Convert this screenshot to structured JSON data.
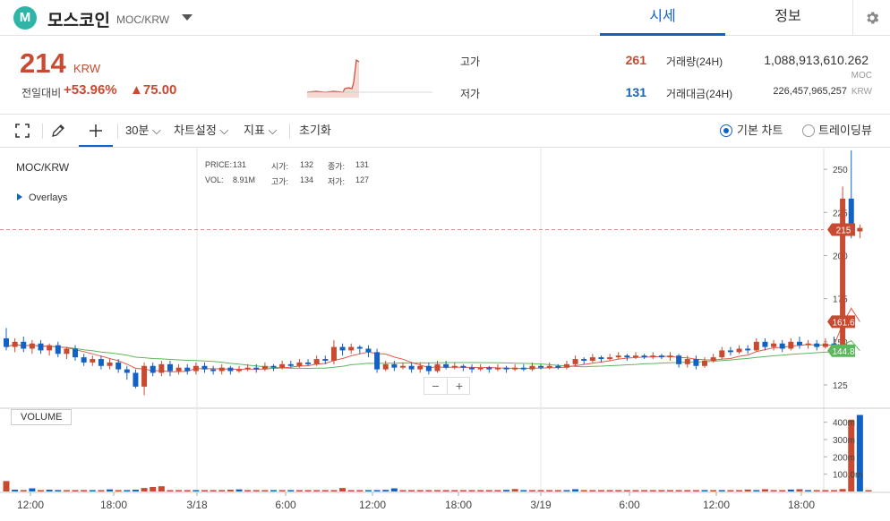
{
  "header": {
    "logo_letter": "M",
    "coin_name": "모스코인",
    "pair": "MOC/KRW",
    "tabs": [
      {
        "label": "시세",
        "active": true
      },
      {
        "label": "정보",
        "active": false
      }
    ]
  },
  "price": {
    "value": "214",
    "unit": "KRW",
    "change_label": "전일대비",
    "change_pct": "+53.96%",
    "change_amt": "▲75.00"
  },
  "stats": {
    "high_label": "고가",
    "high": "261",
    "low_label": "저가",
    "low": "131",
    "volume_label": "거래량(24H)",
    "volume": "1,088,913,610.262",
    "volume_unit": "MOC",
    "value_label": "거래대금(24H)",
    "value": "226,457,965,257",
    "value_unit": "KRW"
  },
  "toolbar": {
    "interval": "30분",
    "chart_settings": "차트설정",
    "indicators": "지표",
    "reset": "초기화",
    "basic_chart": "기본 차트",
    "tradingview": "트레이딩뷰",
    "basic_selected": true
  },
  "chart": {
    "pair": "MOC/KRW",
    "overlays": "Overlays",
    "ohlc": {
      "price_label": "PRICE:",
      "price": "131",
      "open_label": "시가:",
      "open": "132",
      "close_label": "종가:",
      "close": "131",
      "vol_label": "VOL:",
      "vol": "8.91M",
      "high_label": "고가:",
      "high": "134",
      "low_label": "저가:",
      "low": "127"
    },
    "volume_label": "VOLUME",
    "zoom_out": "−",
    "zoom_in": "+"
  },
  "colors": {
    "up": "#c84a31",
    "down": "#1261c4",
    "accent": "#1261c4",
    "ma_red": "#e05a4a",
    "ma_green": "#5cb85c"
  },
  "chart_data": {
    "type": "candlestick",
    "y_ticks": [
      250,
      225,
      200,
      175,
      150,
      125
    ],
    "ylim": [
      112,
      262
    ],
    "x_ticks": [
      "12:00",
      "18:00",
      "3/18",
      "6:00",
      "12:00",
      "18:00",
      "3/19",
      "6:00",
      "12:00",
      "18:00"
    ],
    "price_tags": [
      {
        "value": 215,
        "label": "215",
        "color": "#c84a31"
      },
      {
        "value": 161.6,
        "label": "161.6",
        "color": "#c84a31"
      },
      {
        "value": 144.8,
        "label": "144.8",
        "color": "#5cb85c"
      }
    ],
    "volume_ticks": [
      "400m",
      "300m",
      "200m",
      "100.0m"
    ],
    "volume_max": 450,
    "candles": [
      [
        152,
        147,
        158,
        145
      ],
      [
        147,
        150,
        152,
        144
      ],
      [
        150,
        146,
        153,
        144
      ],
      [
        146,
        149,
        151,
        143
      ],
      [
        149,
        145,
        151,
        143
      ],
      [
        145,
        148,
        149,
        142
      ],
      [
        148,
        143,
        150,
        141
      ],
      [
        143,
        146,
        147,
        140
      ],
      [
        146,
        141,
        148,
        139
      ],
      [
        141,
        138,
        143,
        136
      ],
      [
        138,
        140,
        142,
        136
      ],
      [
        140,
        136,
        142,
        134
      ],
      [
        136,
        138,
        140,
        134
      ],
      [
        138,
        134,
        140,
        132
      ],
      [
        134,
        132,
        136,
        128
      ],
      [
        132,
        124,
        134,
        123
      ],
      [
        124,
        136,
        138,
        119
      ],
      [
        136,
        132,
        138,
        130
      ],
      [
        132,
        137,
        139,
        130
      ],
      [
        137,
        133,
        139,
        130
      ],
      [
        133,
        135,
        137,
        131
      ],
      [
        135,
        133,
        137,
        131
      ],
      [
        133,
        136,
        138,
        131
      ],
      [
        136,
        134,
        138,
        132
      ],
      [
        134,
        133,
        136,
        131
      ],
      [
        133,
        135,
        137,
        131
      ],
      [
        135,
        133,
        136,
        131
      ],
      [
        133,
        134,
        136,
        132
      ],
      [
        134,
        135,
        137,
        133
      ],
      [
        135,
        134,
        137,
        132
      ],
      [
        134,
        136,
        138,
        133
      ],
      [
        136,
        135,
        137,
        133
      ],
      [
        135,
        137,
        139,
        134
      ],
      [
        137,
        136,
        139,
        135
      ],
      [
        136,
        138,
        140,
        135
      ],
      [
        138,
        137,
        140,
        136
      ],
      [
        137,
        140,
        142,
        136
      ],
      [
        140,
        139,
        142,
        137
      ],
      [
        139,
        147,
        151,
        137
      ],
      [
        147,
        145,
        149,
        142
      ],
      [
        145,
        147,
        149,
        143
      ],
      [
        147,
        146,
        148,
        143
      ],
      [
        146,
        144,
        148,
        141
      ],
      [
        144,
        134,
        146,
        132
      ],
      [
        134,
        137,
        139,
        133
      ],
      [
        137,
        135,
        139,
        133
      ],
      [
        135,
        136,
        138,
        134
      ],
      [
        136,
        134,
        138,
        132
      ],
      [
        134,
        136,
        138,
        132
      ],
      [
        136,
        133,
        138,
        131
      ],
      [
        133,
        137,
        139,
        132
      ],
      [
        137,
        135,
        139,
        134
      ],
      [
        135,
        136,
        138,
        134
      ],
      [
        136,
        135,
        137,
        133
      ],
      [
        135,
        134,
        137,
        132
      ],
      [
        134,
        135,
        137,
        133
      ],
      [
        135,
        134,
        136,
        132
      ],
      [
        134,
        135,
        137,
        133
      ],
      [
        135,
        134,
        136,
        132
      ],
      [
        134,
        135,
        137,
        133
      ],
      [
        135,
        134,
        137,
        133
      ],
      [
        134,
        136,
        138,
        133
      ],
      [
        136,
        135,
        137,
        134
      ],
      [
        135,
        136,
        138,
        134
      ],
      [
        136,
        135,
        137,
        134
      ],
      [
        135,
        137,
        139,
        134
      ],
      [
        137,
        140,
        142,
        136
      ],
      [
        140,
        139,
        141,
        137
      ],
      [
        139,
        141,
        143,
        138
      ],
      [
        141,
        140,
        142,
        138
      ],
      [
        140,
        141,
        143,
        139
      ],
      [
        141,
        142,
        144,
        140
      ],
      [
        142,
        141,
        143,
        139
      ],
      [
        141,
        142,
        144,
        140
      ],
      [
        142,
        141,
        143,
        140
      ],
      [
        141,
        142,
        144,
        140
      ],
      [
        142,
        141,
        143,
        140
      ],
      [
        141,
        142,
        144,
        139
      ],
      [
        142,
        137,
        143,
        135
      ],
      [
        137,
        140,
        142,
        135
      ],
      [
        140,
        136,
        142,
        134
      ],
      [
        136,
        139,
        141,
        135
      ],
      [
        139,
        141,
        143,
        138
      ],
      [
        141,
        145,
        147,
        140
      ],
      [
        145,
        144,
        147,
        142
      ],
      [
        144,
        146,
        148,
        143
      ],
      [
        146,
        145,
        148,
        143
      ],
      [
        145,
        150,
        152,
        144
      ],
      [
        150,
        147,
        152,
        145
      ],
      [
        147,
        149,
        151,
        145
      ],
      [
        149,
        146,
        151,
        144
      ],
      [
        146,
        150,
        152,
        145
      ],
      [
        150,
        148,
        153,
        146
      ],
      [
        148,
        149,
        151,
        146
      ],
      [
        149,
        147,
        151,
        145
      ],
      [
        147,
        149,
        152,
        146
      ],
      [
        149,
        146,
        153,
        145
      ],
      [
        147,
        233,
        240,
        146
      ],
      [
        233,
        214,
        261,
        210
      ],
      [
        214,
        216,
        218,
        210
      ]
    ],
    "volumes": [
      [
        60,
        0
      ],
      [
        10,
        1
      ],
      [
        8,
        0
      ],
      [
        18,
        1
      ],
      [
        6,
        0
      ],
      [
        10,
        1
      ],
      [
        8,
        1
      ],
      [
        6,
        0
      ],
      [
        4,
        0
      ],
      [
        8,
        0
      ],
      [
        3,
        1
      ],
      [
        5,
        0
      ],
      [
        12,
        1
      ],
      [
        6,
        0
      ],
      [
        3,
        1
      ],
      [
        10,
        1
      ],
      [
        20,
        0
      ],
      [
        26,
        0
      ],
      [
        30,
        0
      ],
      [
        4,
        0
      ],
      [
        4,
        0
      ],
      [
        3,
        0
      ],
      [
        5,
        1
      ],
      [
        4,
        0
      ],
      [
        7,
        0
      ],
      [
        8,
        0
      ],
      [
        10,
        0
      ],
      [
        12,
        1
      ],
      [
        5,
        0
      ],
      [
        4,
        0
      ],
      [
        4,
        0
      ],
      [
        2,
        1
      ],
      [
        6,
        0
      ],
      [
        3,
        1
      ],
      [
        3,
        0
      ],
      [
        2,
        0
      ],
      [
        2,
        0
      ],
      [
        2,
        0
      ],
      [
        4,
        0
      ],
      [
        20,
        0
      ],
      [
        3,
        0
      ],
      [
        2,
        0
      ],
      [
        5,
        1
      ],
      [
        2,
        1
      ],
      [
        9,
        1
      ],
      [
        18,
        1
      ],
      [
        2,
        0
      ],
      [
        2,
        0
      ],
      [
        1,
        0
      ],
      [
        1,
        0
      ],
      [
        1,
        0
      ],
      [
        1,
        0
      ],
      [
        2,
        0
      ],
      [
        1,
        0
      ],
      [
        1,
        0
      ],
      [
        2,
        0
      ],
      [
        1,
        0
      ],
      [
        1,
        0
      ],
      [
        9,
        1
      ],
      [
        14,
        0
      ],
      [
        6,
        1
      ],
      [
        1,
        0
      ],
      [
        1,
        0
      ],
      [
        1,
        0
      ],
      [
        4,
        0
      ],
      [
        1,
        1
      ],
      [
        13,
        1
      ],
      [
        1,
        0
      ],
      [
        6,
        0
      ],
      [
        2,
        0
      ],
      [
        1,
        0
      ],
      [
        1,
        0
      ],
      [
        4,
        0
      ],
      [
        2,
        0
      ],
      [
        1,
        0
      ],
      [
        1,
        0
      ],
      [
        3,
        0
      ],
      [
        1,
        0
      ],
      [
        1,
        0
      ],
      [
        4,
        0
      ],
      [
        1,
        0
      ],
      [
        1,
        1
      ],
      [
        1,
        0
      ],
      [
        2,
        1
      ],
      [
        1,
        0
      ],
      [
        2,
        0
      ],
      [
        11,
        0
      ],
      [
        6,
        1
      ],
      [
        13,
        0
      ],
      [
        5,
        0
      ],
      [
        3,
        0
      ],
      [
        11,
        1
      ],
      [
        13,
        0
      ],
      [
        1,
        1
      ],
      [
        4,
        0
      ],
      [
        1,
        0
      ],
      [
        3,
        0
      ],
      [
        14,
        0
      ],
      [
        415,
        0
      ],
      [
        442,
        1
      ],
      [
        3,
        0
      ]
    ]
  }
}
